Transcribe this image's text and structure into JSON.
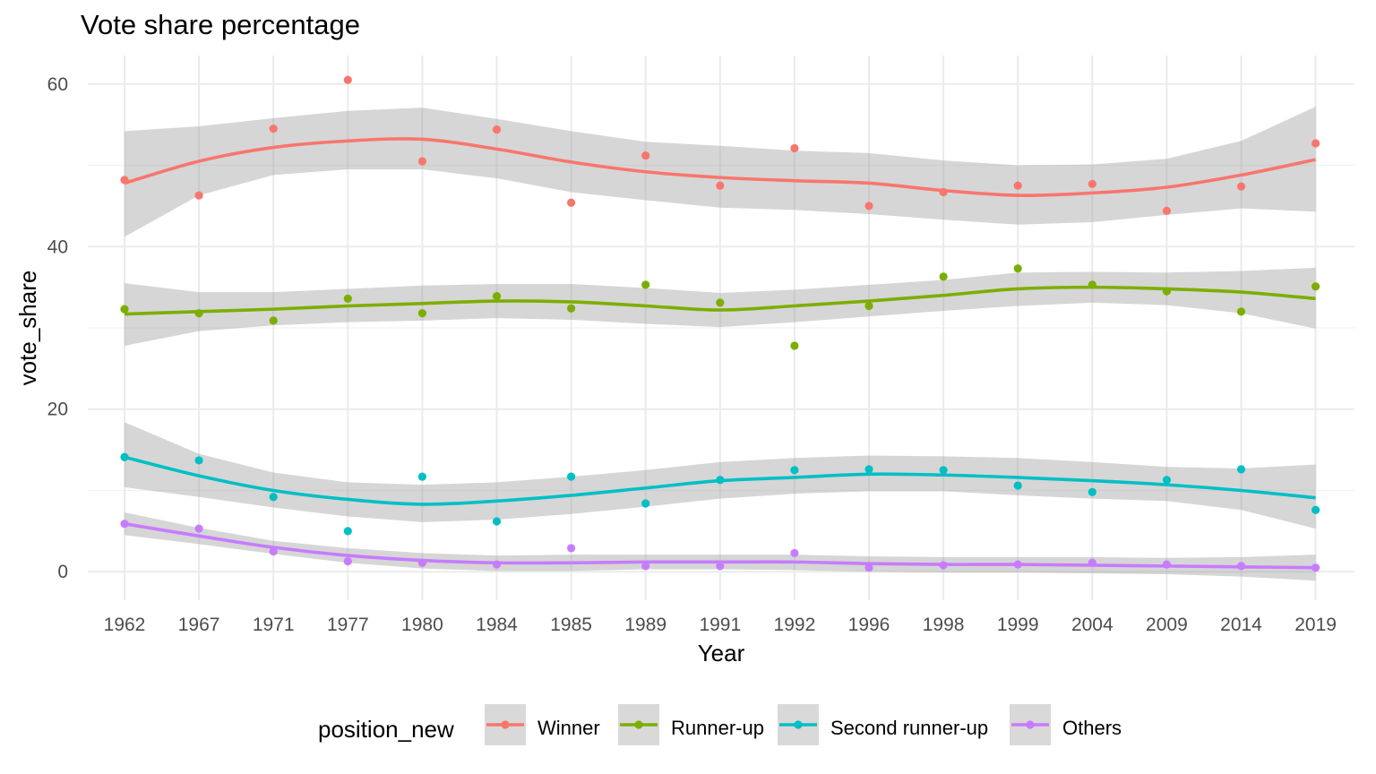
{
  "chart_data": {
    "type": "scatter",
    "title": "Vote share percentage",
    "xlabel": "Year",
    "ylabel": "vote_share",
    "categories": [
      "1962",
      "1967",
      "1971",
      "1977",
      "1980",
      "1984",
      "1985",
      "1989",
      "1991",
      "1992",
      "1996",
      "1998",
      "1999",
      "2004",
      "2009",
      "2014",
      "2019"
    ],
    "y_ticks": [
      "0",
      "20",
      "40",
      "60"
    ],
    "ylim": [
      -3.5,
      63.5
    ],
    "grid": true,
    "legend_title": "position_new",
    "legend_position": "bottom",
    "series": [
      {
        "name": "Winner",
        "color": "#F8766D",
        "points": [
          48.2,
          46.3,
          54.5,
          60.5,
          50.5,
          54.4,
          45.4,
          51.2,
          47.5,
          52.1,
          45.0,
          46.7,
          47.5,
          47.7,
          44.4,
          47.4,
          52.7
        ],
        "smooth": [
          47.8,
          50.5,
          52.2,
          53.0,
          53.2,
          52.0,
          50.4,
          49.2,
          48.5,
          48.1,
          47.8,
          46.9,
          46.3,
          46.6,
          47.3,
          48.8,
          50.7
        ],
        "lower": [
          41.2,
          46.3,
          48.8,
          49.5,
          49.5,
          48.4,
          46.7,
          45.7,
          44.8,
          44.5,
          44.0,
          43.3,
          42.7,
          43.0,
          43.9,
          44.7,
          44.3
        ],
        "upper": [
          54.2,
          54.8,
          55.8,
          56.7,
          57.1,
          55.7,
          54.2,
          52.9,
          52.4,
          51.8,
          51.5,
          50.6,
          50.0,
          50.1,
          50.8,
          53.0,
          57.2
        ]
      },
      {
        "name": "Runner-up",
        "color": "#7CAE00",
        "points": [
          32.3,
          31.8,
          30.9,
          33.6,
          31.8,
          33.9,
          32.4,
          35.3,
          33.1,
          27.8,
          32.7,
          36.3,
          37.3,
          35.3,
          34.5,
          32.0,
          35.1
        ],
        "smooth": [
          31.7,
          32.0,
          32.3,
          32.7,
          33.0,
          33.3,
          33.2,
          32.7,
          32.2,
          32.7,
          33.3,
          34.0,
          34.8,
          35.0,
          34.8,
          34.4,
          33.6
        ],
        "lower": [
          27.8,
          29.6,
          30.3,
          30.7,
          30.9,
          31.2,
          31.0,
          30.5,
          30.1,
          30.7,
          31.4,
          32.1,
          32.7,
          33.1,
          32.8,
          31.8,
          29.9
        ],
        "upper": [
          35.5,
          34.4,
          34.4,
          34.8,
          35.2,
          35.4,
          35.4,
          34.9,
          34.3,
          34.7,
          35.3,
          35.9,
          36.8,
          36.9,
          36.8,
          37.0,
          37.4
        ]
      },
      {
        "name": "Second runner-up",
        "color": "#00BFC4",
        "points": [
          14.1,
          13.7,
          9.2,
          5.0,
          11.7,
          6.2,
          11.7,
          8.4,
          11.3,
          12.5,
          12.6,
          12.5,
          10.6,
          9.8,
          11.3,
          12.6,
          7.6
        ],
        "smooth": [
          14.1,
          11.8,
          10.0,
          8.9,
          8.3,
          8.7,
          9.4,
          10.3,
          11.2,
          11.6,
          12.0,
          11.9,
          11.6,
          11.2,
          10.7,
          10.0,
          9.1
        ],
        "lower": [
          10.4,
          9.2,
          7.9,
          6.8,
          6.1,
          6.4,
          7.1,
          8.0,
          9.0,
          9.6,
          9.9,
          9.9,
          9.4,
          9.0,
          8.7,
          7.6,
          5.3
        ],
        "upper": [
          18.4,
          14.5,
          12.2,
          11.0,
          10.7,
          11.0,
          11.7,
          12.5,
          13.5,
          14.0,
          14.3,
          14.2,
          14.0,
          13.5,
          12.9,
          12.7,
          13.2
        ]
      },
      {
        "name": "Others",
        "color": "#C77CFF",
        "points": [
          5.9,
          5.3,
          2.5,
          1.3,
          1.1,
          0.9,
          2.9,
          0.7,
          0.7,
          2.3,
          0.5,
          0.8,
          0.9,
          1.1,
          0.9,
          0.7,
          0.5
        ],
        "smooth": [
          5.9,
          4.4,
          3.0,
          2.0,
          1.4,
          1.1,
          1.1,
          1.2,
          1.2,
          1.2,
          1.0,
          0.9,
          0.9,
          0.8,
          0.7,
          0.6,
          0.5
        ],
        "lower": [
          4.5,
          3.4,
          2.2,
          1.1,
          0.4,
          0.1,
          0.1,
          0.3,
          0.3,
          0.2,
          0.0,
          -0.1,
          -0.1,
          -0.2,
          -0.3,
          -0.6,
          -1.1
        ],
        "upper": [
          7.3,
          5.4,
          3.8,
          2.9,
          2.3,
          2.0,
          2.1,
          2.1,
          2.1,
          2.1,
          1.9,
          1.8,
          1.8,
          1.8,
          1.7,
          1.8,
          2.1
        ]
      }
    ]
  }
}
